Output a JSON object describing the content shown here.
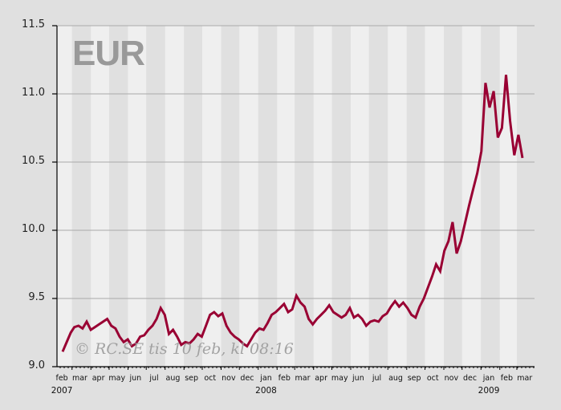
{
  "chart_data": {
    "type": "line",
    "title": "EUR",
    "watermark": "© RC.SE tis 10 feb, kl 08:16",
    "xlabel": "",
    "ylabel": "",
    "ylim": [
      9.0,
      11.5
    ],
    "yticks": [
      "9.0",
      "9.5",
      "10.0",
      "10.5",
      "11.0",
      "11.5"
    ],
    "grid": {
      "horizontal": true,
      "vertical_stripes": "alternating months"
    },
    "x_range": [
      "2007-02",
      "2009-03"
    ],
    "month_ticks": [
      "feb",
      "mar",
      "apr",
      "may",
      "jun",
      "jul",
      "aug",
      "sep",
      "oct",
      "nov",
      "dec",
      "jan",
      "feb",
      "mar",
      "apr",
      "may",
      "jun",
      "jul",
      "aug",
      "sep",
      "oct",
      "nov",
      "dec",
      "jan",
      "feb",
      "mar"
    ],
    "year_labels": [
      {
        "label": "2007",
        "month_index": 0
      },
      {
        "label": "2008",
        "month_index": 11
      },
      {
        "label": "2009",
        "month_index": 23
      }
    ],
    "series": [
      {
        "name": "EUR",
        "color": "#990033",
        "points": [
          [
            "2007-02-09",
            9.11
          ],
          [
            "2007-02-16",
            9.18
          ],
          [
            "2007-02-23",
            9.25
          ],
          [
            "2007-03-01",
            9.29
          ],
          [
            "2007-03-08",
            9.3
          ],
          [
            "2007-03-15",
            9.28
          ],
          [
            "2007-03-22",
            9.33
          ],
          [
            "2007-03-29",
            9.27
          ],
          [
            "2007-04-05",
            9.29
          ],
          [
            "2007-04-12",
            9.31
          ],
          [
            "2007-04-19",
            9.33
          ],
          [
            "2007-04-26",
            9.35
          ],
          [
            "2007-05-03",
            9.3
          ],
          [
            "2007-05-10",
            9.28
          ],
          [
            "2007-05-17",
            9.22
          ],
          [
            "2007-05-24",
            9.18
          ],
          [
            "2007-05-31",
            9.2
          ],
          [
            "2007-06-07",
            9.15
          ],
          [
            "2007-06-14",
            9.17
          ],
          [
            "2007-06-21",
            9.22
          ],
          [
            "2007-06-28",
            9.23
          ],
          [
            "2007-07-05",
            9.27
          ],
          [
            "2007-07-12",
            9.3
          ],
          [
            "2007-07-19",
            9.35
          ],
          [
            "2007-07-26",
            9.43
          ],
          [
            "2007-08-02",
            9.38
          ],
          [
            "2007-08-09",
            9.24
          ],
          [
            "2007-08-16",
            9.27
          ],
          [
            "2007-08-23",
            9.22
          ],
          [
            "2007-08-30",
            9.16
          ],
          [
            "2007-09-06",
            9.18
          ],
          [
            "2007-09-13",
            9.17
          ],
          [
            "2007-09-20",
            9.2
          ],
          [
            "2007-09-27",
            9.24
          ],
          [
            "2007-10-04",
            9.22
          ],
          [
            "2007-10-11",
            9.3
          ],
          [
            "2007-10-18",
            9.38
          ],
          [
            "2007-10-25",
            9.4
          ],
          [
            "2007-11-01",
            9.37
          ],
          [
            "2007-11-08",
            9.39
          ],
          [
            "2007-11-15",
            9.3
          ],
          [
            "2007-11-22",
            9.25
          ],
          [
            "2007-11-29",
            9.22
          ],
          [
            "2007-12-06",
            9.2
          ],
          [
            "2007-12-13",
            9.17
          ],
          [
            "2007-12-20",
            9.15
          ],
          [
            "2007-12-27",
            9.2
          ],
          [
            "2008-01-03",
            9.25
          ],
          [
            "2008-01-10",
            9.28
          ],
          [
            "2008-01-17",
            9.27
          ],
          [
            "2008-01-24",
            9.32
          ],
          [
            "2008-01-31",
            9.38
          ],
          [
            "2008-02-07",
            9.4
          ],
          [
            "2008-02-14",
            9.43
          ],
          [
            "2008-02-21",
            9.46
          ],
          [
            "2008-02-28",
            9.4
          ],
          [
            "2008-03-06",
            9.42
          ],
          [
            "2008-03-13",
            9.52
          ],
          [
            "2008-03-20",
            9.47
          ],
          [
            "2008-03-27",
            9.44
          ],
          [
            "2008-04-03",
            9.35
          ],
          [
            "2008-04-10",
            9.31
          ],
          [
            "2008-04-17",
            9.35
          ],
          [
            "2008-04-24",
            9.38
          ],
          [
            "2008-05-01",
            9.41
          ],
          [
            "2008-05-08",
            9.45
          ],
          [
            "2008-05-15",
            9.4
          ],
          [
            "2008-05-22",
            9.38
          ],
          [
            "2008-05-29",
            9.36
          ],
          [
            "2008-06-05",
            9.38
          ],
          [
            "2008-06-12",
            9.43
          ],
          [
            "2008-06-19",
            9.36
          ],
          [
            "2008-06-26",
            9.38
          ],
          [
            "2008-07-03",
            9.35
          ],
          [
            "2008-07-10",
            9.3
          ],
          [
            "2008-07-17",
            9.33
          ],
          [
            "2008-07-24",
            9.34
          ],
          [
            "2008-07-31",
            9.33
          ],
          [
            "2008-08-07",
            9.37
          ],
          [
            "2008-08-14",
            9.39
          ],
          [
            "2008-08-21",
            9.44
          ],
          [
            "2008-08-28",
            9.48
          ],
          [
            "2008-09-04",
            9.44
          ],
          [
            "2008-09-11",
            9.47
          ],
          [
            "2008-09-18",
            9.43
          ],
          [
            "2008-09-25",
            9.38
          ],
          [
            "2008-10-02",
            9.36
          ],
          [
            "2008-10-09",
            9.44
          ],
          [
            "2008-10-16",
            9.5
          ],
          [
            "2008-10-23",
            9.58
          ],
          [
            "2008-10-30",
            9.66
          ],
          [
            "2008-11-06",
            9.75
          ],
          [
            "2008-11-13",
            9.7
          ],
          [
            "2008-11-20",
            9.85
          ],
          [
            "2008-11-27",
            9.92
          ],
          [
            "2008-12-04",
            10.06
          ],
          [
            "2008-12-11",
            9.83
          ],
          [
            "2008-12-18",
            9.92
          ],
          [
            "2008-12-25",
            10.05
          ],
          [
            "2009-01-01",
            10.18
          ],
          [
            "2009-01-08",
            10.3
          ],
          [
            "2009-01-15",
            10.42
          ],
          [
            "2009-01-22",
            10.58
          ],
          [
            "2009-01-29",
            11.08
          ],
          [
            "2009-02-05",
            10.9
          ],
          [
            "2009-02-12",
            11.02
          ],
          [
            "2009-02-19",
            10.68
          ],
          [
            "2009-02-26",
            10.75
          ],
          [
            "2009-03-05",
            11.14
          ],
          [
            "2009-03-12",
            10.8
          ],
          [
            "2009-03-19",
            10.55
          ],
          [
            "2009-03-26",
            10.7
          ],
          [
            "2009-04-02",
            10.53
          ]
        ]
      }
    ]
  }
}
